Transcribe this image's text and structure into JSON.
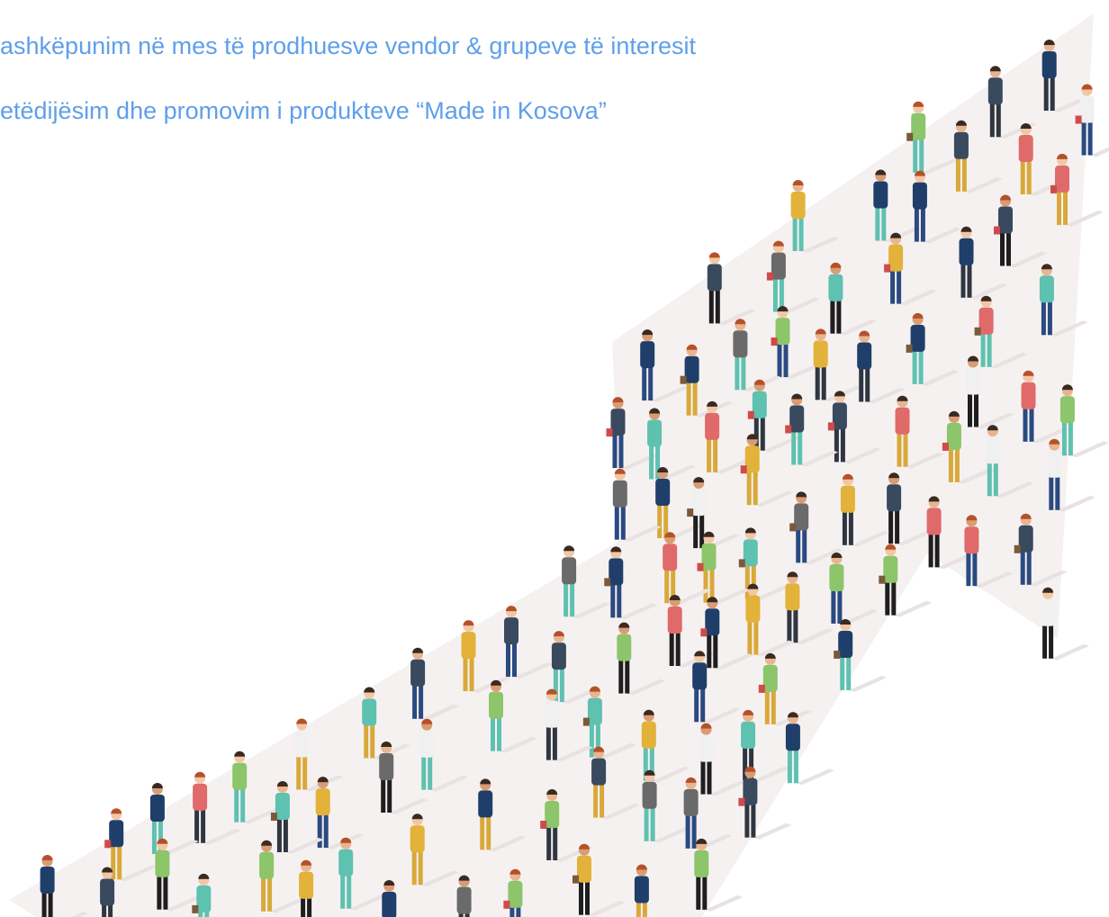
{
  "texts": [
    "ashkëpunim në mes të prodhuesve vendor & grupeve të interesit",
    "etëdijësim dhe promovim i produkteve “Made in Kosova”"
  ]
}
